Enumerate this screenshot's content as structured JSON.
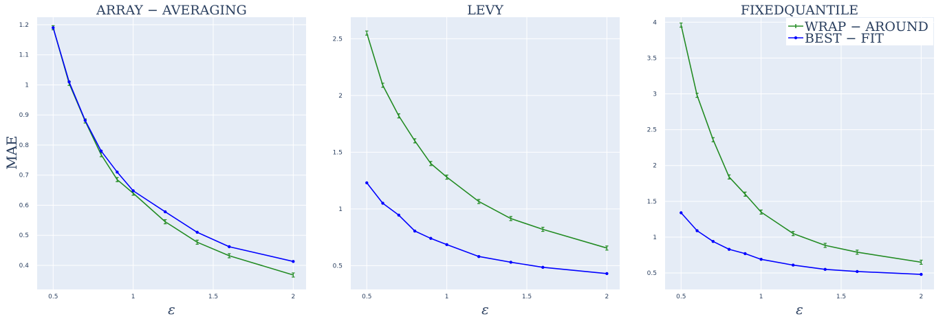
{
  "legend": {
    "entries": [
      {
        "label": "WRAP − AROUND",
        "color": "#228b22"
      },
      {
        "label": "BEST − FIT",
        "color": "#0000ff"
      }
    ],
    "placement": "top-right"
  },
  "chart_data": [
    {
      "type": "line",
      "title": "ARRAY − AVERAGING",
      "xlabel": "ε",
      "ylabel": "MAE",
      "xlim": [
        0.4,
        2.08
      ],
      "ylim": [
        0.32,
        1.225
      ],
      "xticks": [
        0.5,
        1,
        1.5,
        2
      ],
      "yticks": [
        0.4,
        0.5,
        0.6,
        0.7,
        0.8,
        0.9,
        1,
        1.1,
        1.2
      ],
      "grid": true,
      "x": [
        0.5,
        0.6,
        0.7,
        0.8,
        0.9,
        1.0,
        1.2,
        1.4,
        1.6,
        2.0
      ],
      "series": [
        {
          "name": "WRAP − AROUND",
          "color": "#228b22",
          "marker": "tick",
          "values": [
            1.19,
            1.005,
            0.88,
            0.768,
            0.685,
            0.64,
            0.545,
            0.477,
            0.432,
            0.368
          ]
        },
        {
          "name": "BEST − FIT",
          "color": "#0000ff",
          "marker": "dot",
          "values": [
            1.19,
            1.01,
            0.882,
            0.78,
            0.71,
            0.648,
            0.578,
            0.51,
            0.462,
            0.413
          ]
        }
      ]
    },
    {
      "type": "line",
      "title": "LEVY",
      "xlabel": "ε",
      "ylabel": "",
      "xlim": [
        0.4,
        2.08
      ],
      "ylim": [
        0.29,
        2.69
      ],
      "xticks": [
        0.5,
        1,
        1.5,
        2
      ],
      "yticks": [
        0.5,
        1,
        1.5,
        2,
        2.5
      ],
      "grid": true,
      "x": [
        0.5,
        0.6,
        0.7,
        0.8,
        0.9,
        1.0,
        1.2,
        1.4,
        1.6,
        2.0
      ],
      "series": [
        {
          "name": "WRAP − AROUND",
          "color": "#228b22",
          "marker": "tick",
          "values": [
            2.55,
            2.09,
            1.82,
            1.6,
            1.4,
            1.28,
            1.065,
            0.915,
            0.82,
            0.655
          ]
        },
        {
          "name": "BEST − FIT",
          "color": "#0000ff",
          "marker": "dot",
          "values": [
            1.23,
            1.05,
            0.945,
            0.805,
            0.74,
            0.685,
            0.58,
            0.53,
            0.485,
            0.43
          ]
        }
      ]
    },
    {
      "type": "line",
      "title": "FIXEDQUANTILE",
      "xlabel": "ε",
      "ylabel": "",
      "xlim": [
        0.4,
        2.08
      ],
      "ylim": [
        0.27,
        4.07
      ],
      "xticks": [
        0.5,
        1,
        1.5,
        2
      ],
      "yticks": [
        0.5,
        1,
        1.5,
        2,
        2.5,
        3,
        3.5,
        4
      ],
      "grid": true,
      "x": [
        0.5,
        0.6,
        0.7,
        0.8,
        0.9,
        1.0,
        1.2,
        1.4,
        1.6,
        2.0
      ],
      "series": [
        {
          "name": "WRAP − AROUND",
          "color": "#228b22",
          "marker": "tick",
          "values": [
            3.96,
            2.98,
            2.36,
            1.84,
            1.6,
            1.35,
            1.05,
            0.885,
            0.79,
            0.65
          ]
        },
        {
          "name": "BEST − FIT",
          "color": "#0000ff",
          "marker": "dot",
          "values": [
            1.34,
            1.09,
            0.94,
            0.83,
            0.77,
            0.69,
            0.61,
            0.55,
            0.52,
            0.48
          ]
        }
      ]
    }
  ]
}
